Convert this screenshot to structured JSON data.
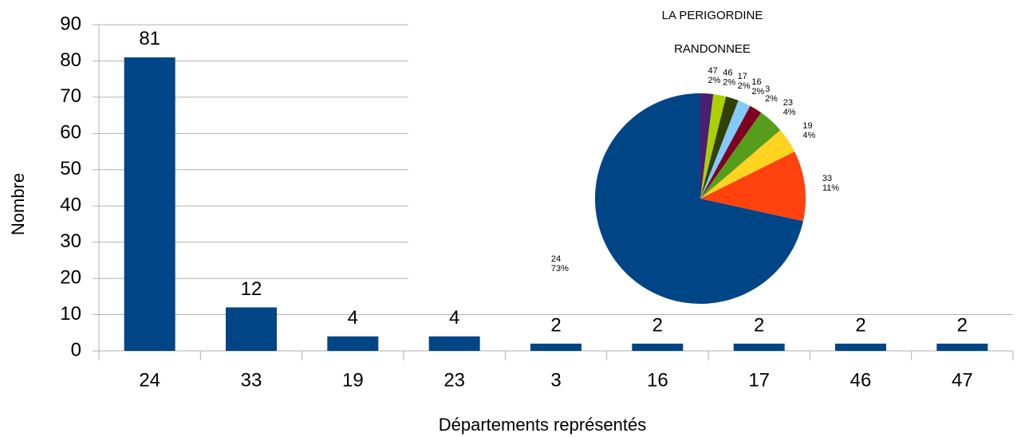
{
  "chart_data": [
    {
      "type": "bar",
      "categories": [
        "24",
        "33",
        "19",
        "23",
        "3",
        "16",
        "17",
        "46",
        "47"
      ],
      "values": [
        81,
        12,
        4,
        4,
        2,
        2,
        2,
        2,
        2
      ],
      "color": "#004586",
      "ylim": [
        0,
        90
      ],
      "yticks": [
        0,
        10,
        20,
        30,
        40,
        50,
        60,
        70,
        80,
        90
      ],
      "grid": true,
      "xlabel": "Départements représentés",
      "ylabel": "Nombre"
    },
    {
      "type": "pie",
      "title": "LA PERIGORDINE",
      "subtitle": "RANDONNEE",
      "categories": [
        "24",
        "33",
        "19",
        "23",
        "3",
        "16",
        "17",
        "46",
        "47"
      ],
      "values": [
        73,
        11,
        4,
        4,
        2,
        2,
        2,
        2,
        2
      ],
      "value_labels": [
        "73%",
        "11%",
        "4%",
        "4%",
        "2%",
        "2%",
        "2%",
        "2%",
        "2%"
      ],
      "colors": [
        "#004586",
        "#ff420e",
        "#ffd320",
        "#579d1c",
        "#7e0021",
        "#83caff",
        "#314004",
        "#aecf00",
        "#4b1f6f"
      ]
    }
  ]
}
